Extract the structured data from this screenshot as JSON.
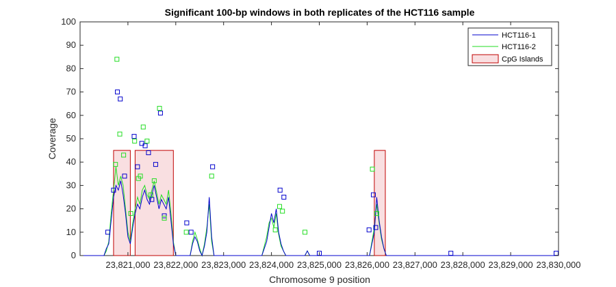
{
  "chart_data": {
    "type": "line",
    "title": "Significant 100-bp windows in both replicates of the HCT116 sample",
    "xlabel": "Chromosome 9 position",
    "ylabel": "Coverage",
    "xlim": [
      23820000,
      23830000
    ],
    "ylim": [
      0,
      100
    ],
    "x_ticks": [
      23821000,
      23822000,
      23823000,
      23824000,
      23825000,
      23826000,
      23827000,
      23828000,
      23829000,
      23830000
    ],
    "x_tick_labels": [
      "23,821,000",
      "23,822,000",
      "23,823,000",
      "23,824,000",
      "23,825,000",
      "23,826,000",
      "23,827,000",
      "23,828,000",
      "23,829,000",
      "23,830,000"
    ],
    "y_ticks": [
      0,
      10,
      20,
      30,
      40,
      50,
      60,
      70,
      80,
      90,
      100
    ],
    "y_tick_labels": [
      "0",
      "10",
      "20",
      "30",
      "40",
      "50",
      "60",
      "70",
      "80",
      "90",
      "100"
    ],
    "legend": {
      "position": "top-right",
      "entries": [
        "HCT116-1",
        "HCT116-2",
        "CpG Islands"
      ]
    },
    "colors": {
      "HCT116-1": "#0000cc",
      "HCT116-2": "#22dd22",
      "cpg_fill": "#f9dfe1",
      "cpg_edge": "#c00000"
    },
    "cpg_islands": [
      {
        "start": 23820700,
        "end": 23821050,
        "height": 45
      },
      {
        "start": 23821150,
        "end": 23821950,
        "height": 45
      },
      {
        "start": 23826150,
        "end": 23826380,
        "height": 45
      }
    ],
    "series": [
      {
        "name": "HCT116-1",
        "x": [
          23820000,
          23820500,
          23820550,
          23820600,
          23820650,
          23820700,
          23820750,
          23820800,
          23820850,
          23820900,
          23820950,
          23821000,
          23821050,
          23821100,
          23821150,
          23821200,
          23821250,
          23821300,
          23821350,
          23821400,
          23821450,
          23821500,
          23821550,
          23821600,
          23821650,
          23821700,
          23821750,
          23821800,
          23821850,
          23821900,
          23821950,
          23822000,
          23822300,
          23822350,
          23822400,
          23822450,
          23822500,
          23822550,
          23822600,
          23822650,
          23822700,
          23822750,
          23822800,
          23823800,
          23823850,
          23823900,
          23823950,
          23824000,
          23824050,
          23824100,
          23824150,
          23824200,
          23824250,
          23824300,
          23824700,
          23824750,
          23824800,
          23826050,
          23826100,
          23826150,
          23826200,
          23826250,
          23826300,
          23826350,
          23826400,
          23830000
        ],
        "y": [
          0,
          0,
          3,
          5,
          15,
          25,
          30,
          28,
          32,
          26,
          18,
          8,
          5,
          12,
          18,
          22,
          20,
          25,
          28,
          24,
          22,
          26,
          30,
          25,
          20,
          24,
          22,
          20,
          25,
          15,
          5,
          0,
          0,
          5,
          8,
          6,
          2,
          0,
          4,
          10,
          25,
          8,
          0,
          0,
          3,
          6,
          12,
          18,
          14,
          20,
          10,
          5,
          2,
          0,
          0,
          2,
          0,
          0,
          5,
          10,
          25,
          15,
          8,
          3,
          0,
          0
        ],
        "markers": [
          {
            "x": 23820580,
            "y": 10
          },
          {
            "x": 23820700,
            "y": 28
          },
          {
            "x": 23820780,
            "y": 70
          },
          {
            "x": 23820840,
            "y": 67
          },
          {
            "x": 23820930,
            "y": 34
          },
          {
            "x": 23821130,
            "y": 51
          },
          {
            "x": 23821200,
            "y": 38
          },
          {
            "x": 23821290,
            "y": 48
          },
          {
            "x": 23821360,
            "y": 47
          },
          {
            "x": 23821430,
            "y": 44
          },
          {
            "x": 23821500,
            "y": 24
          },
          {
            "x": 23821580,
            "y": 39
          },
          {
            "x": 23821680,
            "y": 61
          },
          {
            "x": 23821760,
            "y": 17
          },
          {
            "x": 23822230,
            "y": 14
          },
          {
            "x": 23822320,
            "y": 10
          },
          {
            "x": 23822770,
            "y": 38
          },
          {
            "x": 23824180,
            "y": 28
          },
          {
            "x": 23824260,
            "y": 25
          },
          {
            "x": 23825000,
            "y": 1
          },
          {
            "x": 23826040,
            "y": 11
          },
          {
            "x": 23826130,
            "y": 26
          },
          {
            "x": 23826180,
            "y": 12
          },
          {
            "x": 23827750,
            "y": 1
          },
          {
            "x": 23829950,
            "y": 1
          }
        ]
      },
      {
        "name": "HCT116-2",
        "x": [
          23820000,
          23820500,
          23820550,
          23820600,
          23820650,
          23820700,
          23820750,
          23820800,
          23820850,
          23820900,
          23820950,
          23821000,
          23821050,
          23821100,
          23821150,
          23821200,
          23821250,
          23821300,
          23821350,
          23821400,
          23821450,
          23821500,
          23821550,
          23821600,
          23821650,
          23821700,
          23821750,
          23821800,
          23821850,
          23821900,
          23821950,
          23822000,
          23822300,
          23822350,
          23822400,
          23822450,
          23822500,
          23822550,
          23822600,
          23822650,
          23822700,
          23822750,
          23822800,
          23823800,
          23823850,
          23823900,
          23823950,
          23824000,
          23824050,
          23824100,
          23824150,
          23824200,
          23824250,
          23824300,
          23824700,
          23824750,
          23824800,
          23826050,
          23826100,
          23826150,
          23826200,
          23826250,
          23826300,
          23826350,
          23826400,
          23830000
        ],
        "y": [
          0,
          0,
          2,
          6,
          18,
          28,
          38,
          30,
          34,
          30,
          20,
          10,
          6,
          14,
          20,
          25,
          22,
          28,
          30,
          26,
          24,
          28,
          32,
          27,
          22,
          26,
          24,
          22,
          28,
          18,
          6,
          0,
          0,
          6,
          10,
          7,
          3,
          0,
          5,
          12,
          22,
          6,
          0,
          0,
          4,
          8,
          14,
          16,
          12,
          18,
          9,
          4,
          2,
          0,
          0,
          2,
          0,
          0,
          6,
          12,
          22,
          14,
          7,
          3,
          0,
          0
        ],
        "markers": [
          {
            "x": 23820740,
            "y": 39
          },
          {
            "x": 23820770,
            "y": 84
          },
          {
            "x": 23820830,
            "y": 52
          },
          {
            "x": 23820910,
            "y": 43
          },
          {
            "x": 23821060,
            "y": 18
          },
          {
            "x": 23821140,
            "y": 49
          },
          {
            "x": 23821220,
            "y": 33
          },
          {
            "x": 23821260,
            "y": 34
          },
          {
            "x": 23821320,
            "y": 55
          },
          {
            "x": 23821400,
            "y": 49
          },
          {
            "x": 23821480,
            "y": 26
          },
          {
            "x": 23821550,
            "y": 32
          },
          {
            "x": 23821660,
            "y": 63
          },
          {
            "x": 23821760,
            "y": 16
          },
          {
            "x": 23822220,
            "y": 10
          },
          {
            "x": 23822750,
            "y": 34
          },
          {
            "x": 23824080,
            "y": 11
          },
          {
            "x": 23824170,
            "y": 21
          },
          {
            "x": 23824230,
            "y": 19
          },
          {
            "x": 23824700,
            "y": 10
          },
          {
            "x": 23826110,
            "y": 37
          },
          {
            "x": 23826200,
            "y": 18
          }
        ]
      }
    ]
  }
}
